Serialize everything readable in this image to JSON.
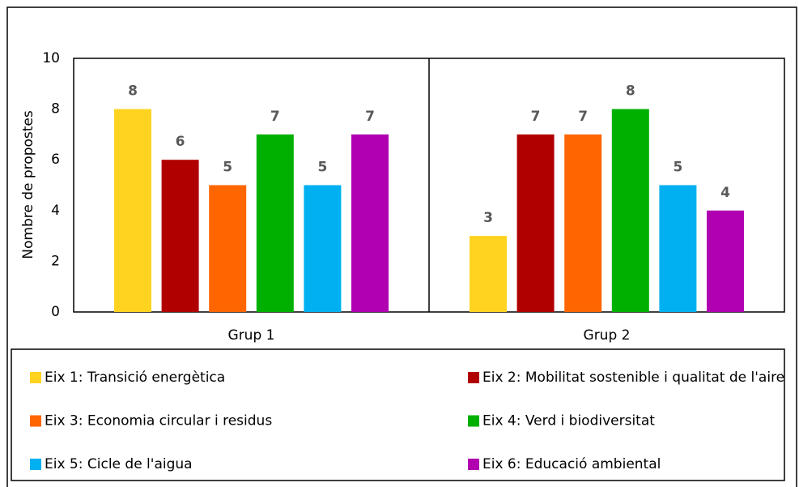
{
  "chart_data": {
    "type": "bar",
    "y_label": "Nombre de propostes",
    "categories": [
      "Grup 1",
      "Grup 2"
    ],
    "series": [
      {
        "name": "Eix 1: Transició energètica",
        "color": "#ffd320",
        "values": [
          8,
          3
        ]
      },
      {
        "name": "Eix 2: Mobilitat sostenible i qualitat de l'aire",
        "color": "#b00000",
        "values": [
          6,
          7
        ]
      },
      {
        "name": "Eix 3: Economia circular i residus",
        "color": "#ff6600",
        "values": [
          5,
          7
        ]
      },
      {
        "name": "Eix 4: Verd i biodiversitat",
        "color": "#00b000",
        "values": [
          7,
          8
        ]
      },
      {
        "name": "Eix 5: Cicle de l'aigua",
        "color": "#00b0f0",
        "values": [
          5,
          5
        ]
      },
      {
        "name": "Eix 6: Educació ambiental",
        "color": "#b000b0",
        "values": [
          7,
          4
        ]
      }
    ],
    "ylim": [
      0,
      10
    ],
    "yticks": [
      0,
      2,
      4,
      6,
      8,
      10
    ],
    "grid": false,
    "legend": "bottom"
  }
}
